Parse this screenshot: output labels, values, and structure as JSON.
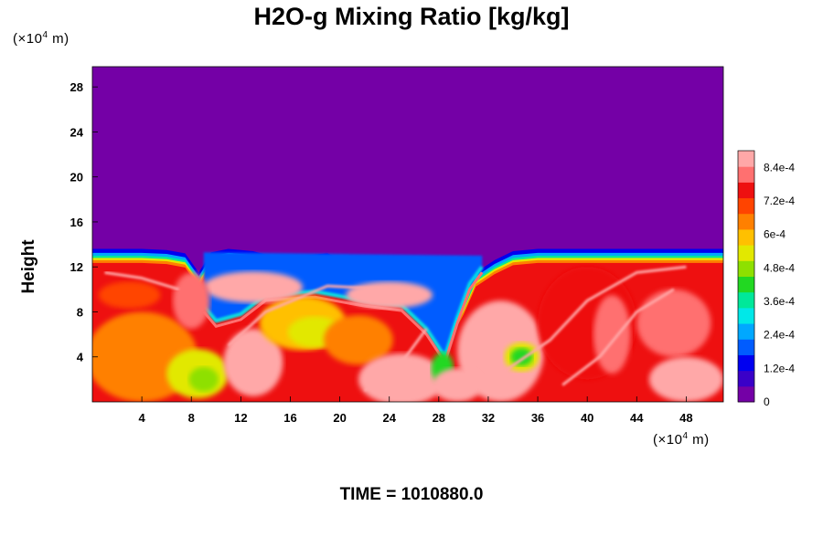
{
  "chart_data": {
    "type": "heatmap",
    "title": "H2O-g Mixing Ratio [kg/kg]",
    "ylabel": "Height",
    "xlabel": "",
    "x_unit_label": {
      "prefix": "(×10",
      "exp": "4",
      "suffix": " m)"
    },
    "y_unit_label": {
      "prefix": "(×10",
      "exp": "4",
      "suffix": " m)"
    },
    "x_ticks": [
      "4",
      "8",
      "12",
      "16",
      "20",
      "24",
      "28",
      "32",
      "36",
      "40",
      "44",
      "48"
    ],
    "y_ticks": [
      "4",
      "8",
      "12",
      "16",
      "20",
      "24",
      "28"
    ],
    "xlim": [
      0,
      51
    ],
    "ylim": [
      0,
      29.8
    ],
    "colorbar": {
      "range": [
        0,
        0.0009
      ],
      "ticks": [
        "0",
        "1.2e-4",
        "2.4e-4",
        "3.6e-4",
        "4.8e-4",
        "6e-4",
        "7.2e-4",
        "8.4e-4"
      ],
      "colors": [
        "#7400a6",
        "#3a00c8",
        "#0000f0",
        "#005cff",
        "#00a8ff",
        "#00e8e8",
        "#00e89a",
        "#22d822",
        "#8ee000",
        "#e2e800",
        "#ffc000",
        "#ff8000",
        "#ff4400",
        "#ee1010",
        "#ff7070",
        "#ffa8a8"
      ]
    },
    "moisture_top_height": [
      [
        0,
        13.6
      ],
      [
        2,
        13.6
      ],
      [
        4,
        13.6
      ],
      [
        6,
        13.5
      ],
      [
        7.5,
        13.2
      ],
      [
        8.6,
        11.5
      ],
      [
        9.6,
        13.3
      ],
      [
        11,
        13.6
      ],
      [
        13,
        13.4
      ],
      [
        15,
        12.8
      ],
      [
        17,
        13.0
      ],
      [
        19,
        13.2
      ],
      [
        21,
        12.2
      ],
      [
        23,
        13.0
      ],
      [
        24.5,
        12.6
      ],
      [
        26,
        12.2
      ],
      [
        27,
        11.0
      ],
      [
        28,
        8.0
      ],
      [
        29,
        7.0
      ],
      [
        30,
        9.0
      ],
      [
        31,
        11.5
      ],
      [
        32.5,
        12.6
      ],
      [
        34,
        13.4
      ],
      [
        36,
        13.6
      ],
      [
        40,
        13.6
      ],
      [
        45,
        13.6
      ],
      [
        51,
        13.6
      ]
    ],
    "dry_tongue_bottom_height": [
      [
        9,
        8.5
      ],
      [
        10,
        7.2
      ],
      [
        12,
        7.8
      ],
      [
        14,
        9.5
      ],
      [
        18,
        9.8
      ],
      [
        22,
        9.0
      ],
      [
        25,
        8.6
      ],
      [
        27,
        6.5
      ],
      [
        28.5,
        4.0
      ],
      [
        29.5,
        7.5
      ],
      [
        30.5,
        10.5
      ],
      [
        31.5,
        12.0
      ]
    ]
  },
  "footer": {
    "time_text": "TIME = 1010880.0"
  }
}
